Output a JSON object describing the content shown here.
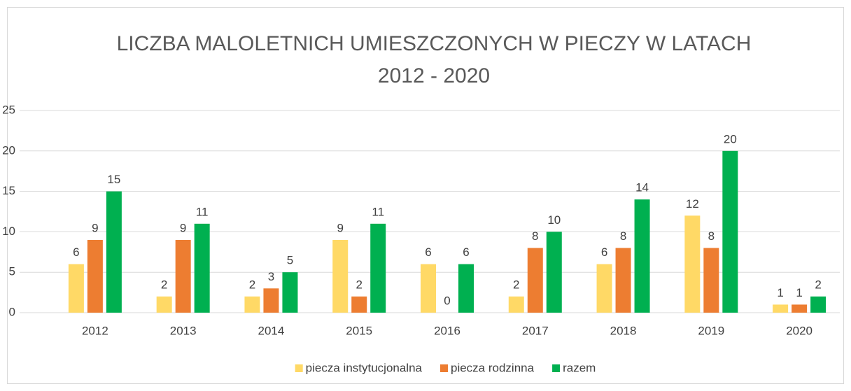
{
  "chart_data": {
    "type": "bar",
    "title": "LICZBA MALOLETNICH UMIESZCZONYCH W PIECZY W LATACH 2012 - 2020",
    "categories": [
      "2012",
      "2013",
      "2014",
      "2015",
      "2016",
      "2017",
      "2018",
      "2019",
      "2020"
    ],
    "series": [
      {
        "name": "piecza instytucjonalna",
        "color": "#ffd966",
        "values": [
          6,
          2,
          2,
          9,
          6,
          2,
          6,
          12,
          1
        ]
      },
      {
        "name": "piecza rodzinna",
        "color": "#ed7d31",
        "values": [
          9,
          9,
          3,
          2,
          0,
          8,
          8,
          8,
          1
        ]
      },
      {
        "name": "razem",
        "color": "#00b050",
        "values": [
          15,
          11,
          5,
          11,
          6,
          10,
          14,
          20,
          2
        ]
      }
    ],
    "ylim": [
      0,
      25
    ],
    "yticks": [
      0,
      5,
      10,
      15,
      20,
      25
    ],
    "grid": true,
    "legend": "bottom"
  }
}
